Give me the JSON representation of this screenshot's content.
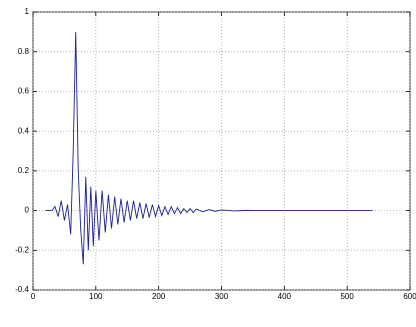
{
  "chart_data": {
    "type": "line",
    "x": [
      20,
      30,
      35,
      40,
      45,
      50,
      55,
      60,
      64,
      68,
      72,
      76,
      80,
      84,
      88,
      92,
      96,
      100,
      105,
      110,
      115,
      120,
      125,
      130,
      135,
      140,
      145,
      150,
      155,
      160,
      165,
      170,
      175,
      180,
      185,
      190,
      195,
      200,
      205,
      210,
      215,
      220,
      225,
      230,
      235,
      240,
      245,
      250,
      255,
      260,
      270,
      280,
      290,
      300,
      320,
      340,
      400,
      540
    ],
    "series": [
      {
        "color": "#1f1f8f",
        "values": [
          0,
          0,
          0.02,
          -0.03,
          0.05,
          -0.05,
          0.03,
          -0.12,
          0.3,
          0.9,
          0.2,
          -0.1,
          -0.27,
          0.17,
          -0.2,
          0.12,
          -0.18,
          0.1,
          -0.15,
          0.1,
          -0.11,
          0.08,
          -0.09,
          0.07,
          -0.07,
          0.06,
          -0.06,
          0.05,
          -0.05,
          0.05,
          -0.04,
          0.04,
          -0.04,
          0.035,
          -0.035,
          0.03,
          -0.03,
          0.025,
          -0.025,
          0.02,
          -0.02,
          0.02,
          -0.015,
          0.015,
          -0.015,
          0.01,
          -0.01,
          0.01,
          -0.01,
          0.008,
          -0.006,
          0.005,
          -0.004,
          0.003,
          -0.002,
          0.001,
          0,
          0
        ]
      }
    ],
    "xlim": [
      0,
      600
    ],
    "xticks": [
      0,
      100,
      200,
      300,
      400,
      500,
      600
    ],
    "ylim": [
      -0.4,
      1
    ],
    "yticks": [
      -0.4,
      -0.2,
      0,
      0.2,
      0.4,
      0.6,
      0.8,
      1
    ],
    "grid": true
  }
}
